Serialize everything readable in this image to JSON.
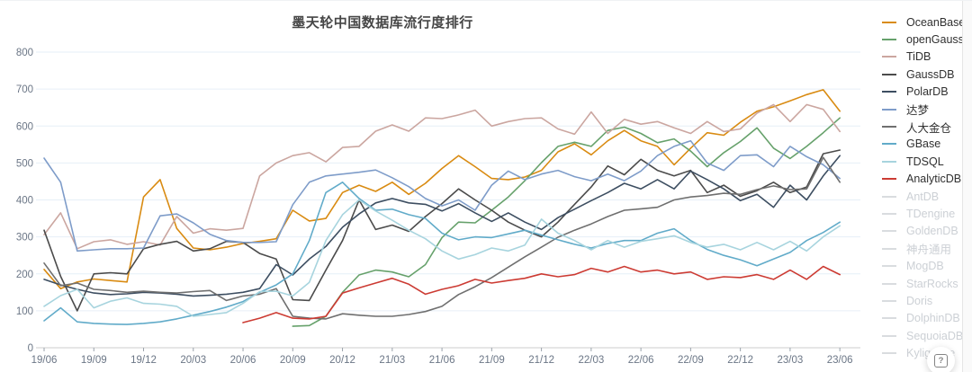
{
  "title": "墨天轮中国数据库流行度排行",
  "help_button": {
    "icon": "question-mark-in-box",
    "label": "?"
  },
  "ui_colors": {
    "background": "#ffffff",
    "grid": "#e6eff7",
    "axis_line": "#cccccc",
    "axis_text": "#6b7686",
    "title_text": "#464646",
    "legend_text_active": "#303030",
    "legend_text_disabled": "#ccd0d5"
  },
  "legend": {
    "position": "right",
    "items": [
      {
        "label": "OceanBase",
        "color": "#d98b12",
        "active": true
      },
      {
        "label": "openGauss",
        "color": "#66a16b",
        "active": true
      },
      {
        "label": "TiDB",
        "color": "#cba6a0",
        "active": true
      },
      {
        "label": "GaussDB",
        "color": "#4b4b4b",
        "active": true
      },
      {
        "label": "PolarDB",
        "color": "#3d4e61",
        "active": true
      },
      {
        "label": "达梦",
        "color": "#7e9cc9",
        "active": true
      },
      {
        "label": "人大金仓",
        "color": "#6f6f6f",
        "active": true
      },
      {
        "label": "GBase",
        "color": "#61abc9",
        "active": true
      },
      {
        "label": "TDSQL",
        "color": "#a7d4de",
        "active": true
      },
      {
        "label": "AnalyticDB",
        "color": "#cc3b33",
        "active": true
      },
      {
        "label": "AntDB",
        "color": "#d9dcdf",
        "active": false
      },
      {
        "label": "TDengine",
        "color": "#d9dcdf",
        "active": false
      },
      {
        "label": "GoldenDB",
        "color": "#d9dcdf",
        "active": false
      },
      {
        "label": "神舟通用",
        "color": "#d9dcdf",
        "active": false
      },
      {
        "label": "MogDB",
        "color": "#d9dcdf",
        "active": false
      },
      {
        "label": "StarRocks",
        "color": "#d9dcdf",
        "active": false
      },
      {
        "label": "Doris",
        "color": "#d9dcdf",
        "active": false
      },
      {
        "label": "DolphinDB",
        "color": "#d9dcdf",
        "active": false
      },
      {
        "label": "SequoiaDB",
        "color": "#d9dcdf",
        "active": false
      },
      {
        "label": "Kyligence",
        "color": "#d9dcdf",
        "active": false
      }
    ]
  },
  "chart_data": {
    "type": "line",
    "title": "墨天轮中国数据库流行度排行",
    "xlabel": "",
    "ylabel": "",
    "ylim": [
      0,
      800
    ],
    "grid": true,
    "legend_position": "right",
    "y_ticks": [
      0,
      100,
      200,
      300,
      400,
      500,
      600,
      700,
      800
    ],
    "x_tick_labels": [
      "19/06",
      "19/09",
      "19/12",
      "20/03",
      "20/06",
      "20/09",
      "20/12",
      "21/03",
      "21/06",
      "21/09",
      "21/12",
      "22/03",
      "22/06",
      "22/09",
      "22/12",
      "23/03",
      "23/06"
    ],
    "x": [
      "19/06",
      "19/07",
      "19/08",
      "19/09",
      "19/10",
      "19/11",
      "19/12",
      "20/01",
      "20/02",
      "20/03",
      "20/04",
      "20/05",
      "20/06",
      "20/07",
      "20/08",
      "20/09",
      "20/10",
      "20/11",
      "20/12",
      "21/01",
      "21/02",
      "21/03",
      "21/04",
      "21/05",
      "21/06",
      "21/07",
      "21/08",
      "21/09",
      "21/10",
      "21/11",
      "21/12",
      "22/01",
      "22/02",
      "22/03",
      "22/04",
      "22/05",
      "22/06",
      "22/07",
      "22/08",
      "22/09",
      "22/10",
      "22/11",
      "22/12",
      "23/01",
      "23/02",
      "23/03",
      "23/04",
      "23/05",
      "23/06"
    ],
    "series": [
      {
        "name": "OceanBase",
        "color": "#d98b12",
        "values": [
          212,
          160,
          178,
          186,
          182,
          178,
          408,
          455,
          323,
          270,
          265,
          272,
          282,
          288,
          295,
          372,
          343,
          350,
          420,
          440,
          423,
          448,
          415,
          445,
          485,
          520,
          490,
          458,
          455,
          462,
          480,
          530,
          552,
          522,
          560,
          588,
          560,
          545,
          495,
          540,
          582,
          575,
          610,
          640,
          652,
          668,
          685,
          698,
          640
        ]
      },
      {
        "name": "openGauss",
        "color": "#66a16b",
        "values": [
          null,
          null,
          null,
          null,
          null,
          null,
          null,
          null,
          null,
          null,
          null,
          null,
          null,
          null,
          null,
          58,
          60,
          85,
          150,
          197,
          210,
          205,
          192,
          225,
          298,
          340,
          338,
          372,
          408,
          452,
          501,
          545,
          556,
          545,
          588,
          597,
          580,
          555,
          565,
          532,
          490,
          528,
          558,
          595,
          540,
          512,
          545,
          582,
          622
        ]
      },
      {
        "name": "TiDB",
        "color": "#cba6a0",
        "values": [
          306,
          365,
          268,
          287,
          292,
          280,
          287,
          278,
          355,
          310,
          322,
          318,
          323,
          465,
          500,
          520,
          528,
          503,
          542,
          545,
          586,
          603,
          586,
          622,
          620,
          630,
          643,
          600,
          612,
          620,
          622,
          592,
          578,
          638,
          580,
          618,
          605,
          612,
          595,
          580,
          612,
          585,
          592,
          635,
          658,
          612,
          658,
          645,
          585
        ]
      },
      {
        "name": "GaussDB",
        "color": "#4b4b4b",
        "values": [
          318,
          193,
          100,
          200,
          203,
          200,
          268,
          280,
          288,
          262,
          268,
          288,
          285,
          255,
          240,
          130,
          128,
          210,
          290,
          400,
          320,
          332,
          315,
          355,
          390,
          430,
          400,
          372,
          340,
          318,
          300,
          340,
          388,
          435,
          492,
          468,
          510,
          480,
          465,
          480,
          420,
          440,
          410,
          425,
          448,
          420,
          435,
          525,
          535
        ]
      },
      {
        "name": "PolarDB",
        "color": "#3d4e61",
        "values": [
          185,
          170,
          158,
          148,
          144,
          146,
          150,
          148,
          145,
          140,
          142,
          145,
          150,
          160,
          225,
          197,
          240,
          274,
          326,
          362,
          392,
          404,
          392,
          388,
          370,
          390,
          365,
          342,
          365,
          340,
          320,
          352,
          375,
          398,
          420,
          445,
          430,
          455,
          430,
          478,
          455,
          430,
          398,
          415,
          380,
          440,
          400,
          465,
          520
        ]
      },
      {
        "name": "达梦",
        "color": "#7e9cc9",
        "values": [
          513,
          448,
          262,
          265,
          268,
          268,
          270,
          357,
          362,
          338,
          307,
          290,
          285,
          285,
          287,
          387,
          448,
          465,
          470,
          475,
          481,
          460,
          436,
          404,
          384,
          400,
          372,
          440,
          478,
          455,
          470,
          480,
          463,
          452,
          470,
          452,
          478,
          520,
          545,
          560,
          500,
          480,
          520,
          522,
          490,
          545,
          517,
          495,
          458
        ]
      },
      {
        "name": "人大金仓",
        "color": "#6f6f6f",
        "values": [
          229,
          168,
          175,
          158,
          155,
          150,
          153,
          150,
          148,
          152,
          155,
          128,
          140,
          145,
          160,
          85,
          80,
          78,
          92,
          88,
          85,
          85,
          90,
          98,
          112,
          144,
          165,
          190,
          218,
          246,
          272,
          299,
          318,
          335,
          355,
          372,
          376,
          380,
          400,
          408,
          412,
          418,
          415,
          428,
          438,
          428,
          430,
          515,
          448
        ]
      },
      {
        "name": "GBase",
        "color": "#61abc9",
        "values": [
          73,
          108,
          70,
          66,
          64,
          63,
          66,
          70,
          78,
          88,
          98,
          110,
          125,
          150,
          170,
          200,
          290,
          420,
          448,
          404,
          372,
          375,
          360,
          350,
          310,
          292,
          300,
          298,
          308,
          318,
          305,
          292,
          280,
          270,
          282,
          290,
          290,
          310,
          322,
          290,
          266,
          250,
          238,
          222,
          240,
          258,
          290,
          312,
          340
        ]
      },
      {
        "name": "TDSQL",
        "color": "#a7d4de",
        "values": [
          112,
          141,
          158,
          108,
          126,
          135,
          120,
          118,
          112,
          85,
          90,
          95,
          120,
          152,
          153,
          140,
          177,
          290,
          360,
          400,
          370,
          345,
          318,
          295,
          262,
          240,
          252,
          270,
          262,
          278,
          348,
          310,
          290,
          265,
          290,
          272,
          288,
          295,
          303,
          285,
          272,
          280,
          265,
          285,
          265,
          288,
          262,
          300,
          330
        ]
      },
      {
        "name": "AnalyticDB",
        "color": "#cc3b33",
        "values": [
          null,
          null,
          null,
          null,
          null,
          null,
          null,
          null,
          null,
          null,
          null,
          null,
          68,
          80,
          95,
          80,
          78,
          85,
          148,
          162,
          175,
          188,
          172,
          145,
          158,
          168,
          185,
          175,
          182,
          188,
          200,
          192,
          198,
          215,
          205,
          220,
          205,
          210,
          200,
          205,
          185,
          192,
          190,
          198,
          185,
          210,
          185,
          220,
          198
        ]
      }
    ],
    "hidden_series": [
      "AntDB",
      "TDengine",
      "GoldenDB",
      "神舟通用",
      "MogDB",
      "StarRocks",
      "Doris",
      "DolphinDB",
      "SequoiaDB",
      "Kyligence"
    ]
  }
}
